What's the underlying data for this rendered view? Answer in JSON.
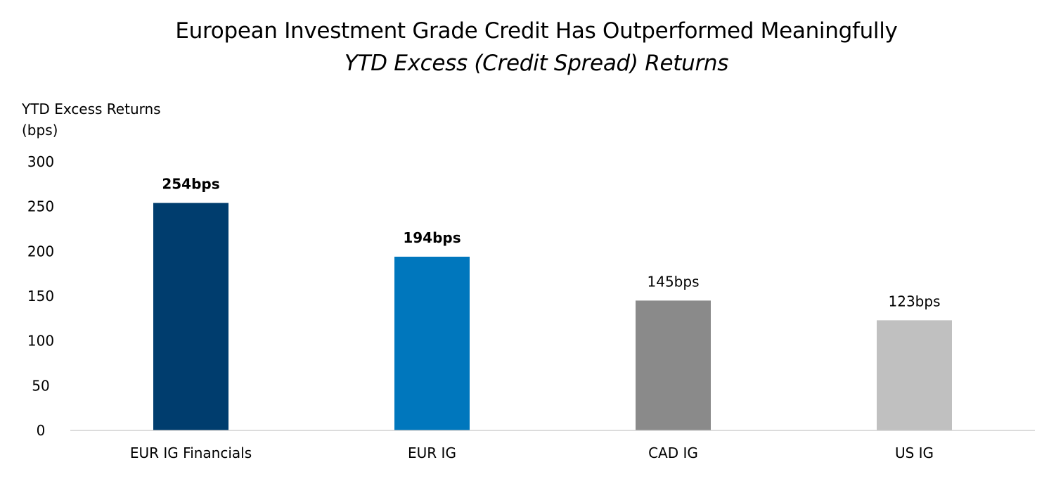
{
  "chart_data": {
    "type": "bar",
    "title": "European Investment Grade Credit Has Outperformed Meaningfully",
    "subtitle": "YTD Excess (Credit Spread) Returns",
    "ylabel": "YTD Excess Returns\n(bps)",
    "xlabel": "",
    "categories": [
      "EUR IG Financials",
      "EUR IG",
      "CAD IG",
      "US IG"
    ],
    "values": [
      254,
      194,
      145,
      123
    ],
    "data_labels": [
      "254bps",
      "194bps",
      "145bps",
      "123bps"
    ],
    "data_label_bold": [
      true,
      true,
      false,
      false
    ],
    "colors": [
      "#003d6e",
      "#0077bd",
      "#8a8a8a",
      "#c0c0c0"
    ],
    "ylim": [
      0,
      300
    ],
    "yticks": [
      0,
      50,
      100,
      150,
      200,
      250,
      300
    ],
    "grid": false,
    "legend": "none"
  }
}
